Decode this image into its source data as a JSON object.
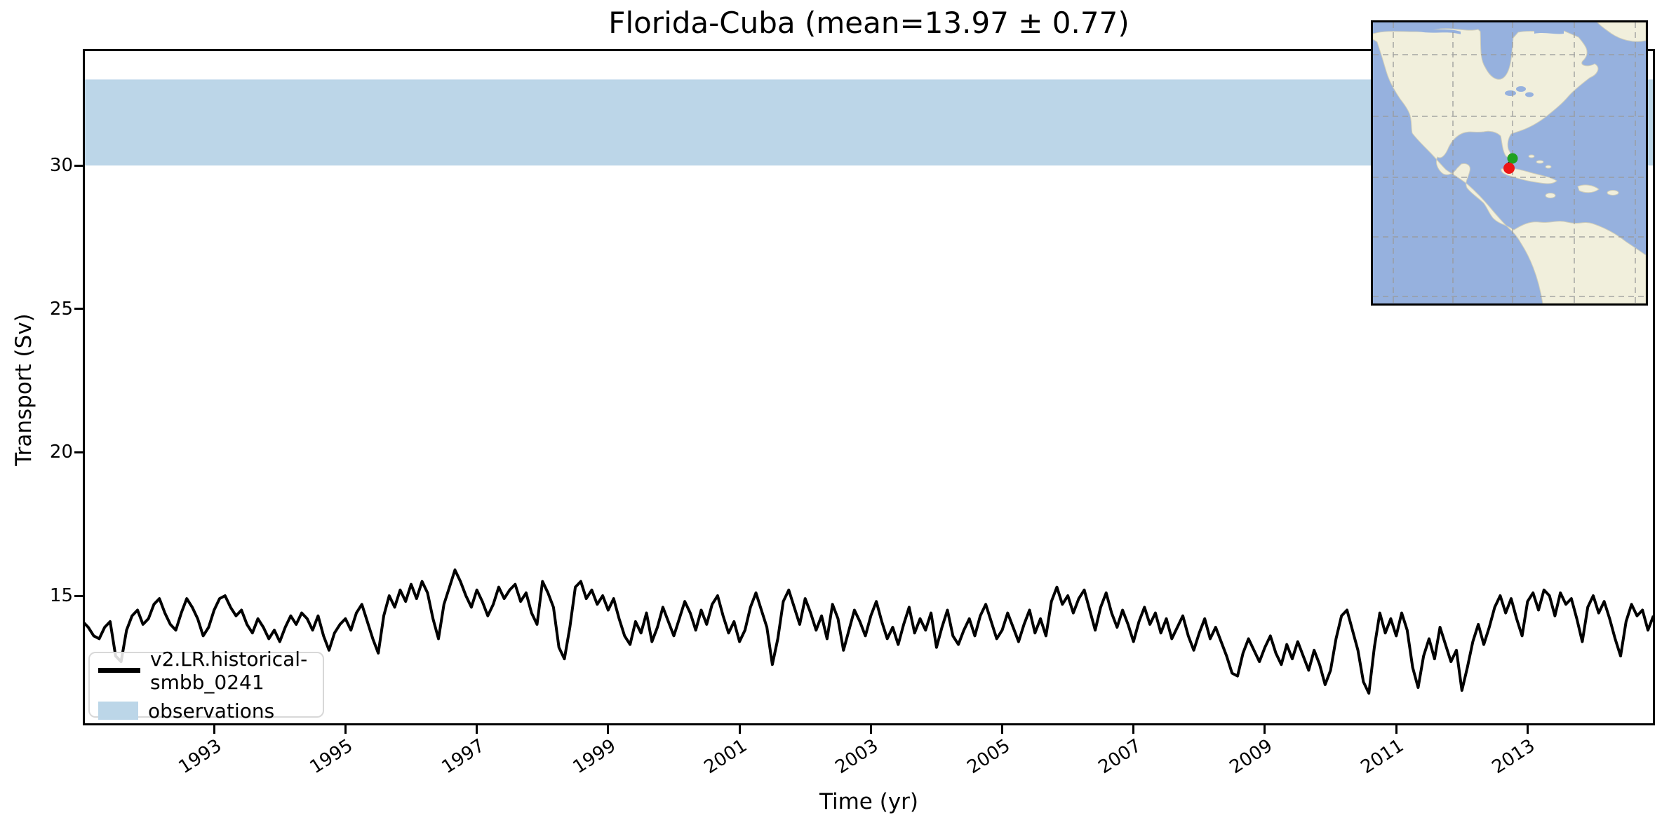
{
  "figure": {
    "title": "Florida-Cuba (mean=13.97 ± 0.77)"
  },
  "axes": {
    "xlabel": "Time (yr)",
    "ylabel": "Transport (Sv)"
  },
  "legend": {
    "items": [
      {
        "label": "v2.LR.historical-smbb_0241",
        "type": "line",
        "color": "#000000"
      },
      {
        "label": "observations",
        "type": "patch",
        "color": "#bcd6e8"
      }
    ]
  },
  "colors": {
    "model_line": "#000000",
    "obs_band": "#bcd6e8",
    "spine": "#000000",
    "map_ocean": "#96b1de",
    "map_land": "#f1efdc",
    "map_grid": "#9a9a9a",
    "marker_green": "#1fa11f",
    "marker_red": "#ed1515"
  },
  "inset_map": {
    "region": "North and Central America with Gulf of Mexico and Caribbean",
    "markers": [
      {
        "name": "florida-endpoint",
        "color": "#1fa11f"
      },
      {
        "name": "cuba-endpoint",
        "color": "#ed1515"
      }
    ]
  },
  "chart_data": {
    "type": "line",
    "title": "Florida-Cuba (mean=13.97 ± 0.77)",
    "xlabel": "Time (yr)",
    "ylabel": "Transport (Sv)",
    "xlim": [
      1991.0,
      2014.94
    ],
    "ylim": [
      10.48,
      34.06
    ],
    "x_ticks": [
      1993,
      1995,
      1997,
      1999,
      2001,
      2003,
      2005,
      2007,
      2009,
      2011,
      2013
    ],
    "y_ticks": [
      15,
      20,
      25,
      30
    ],
    "grid": false,
    "legend_position": "lower left",
    "stats": {
      "mean": 13.97,
      "std": 0.77
    },
    "obs_band": {
      "label": "observations",
      "range": [
        30,
        33
      ],
      "color": "#bcd6e8"
    },
    "x_start": 1991.0,
    "x_step": 0.08333333,
    "series": [
      {
        "name": "v2.LR.historical-smbb_0241",
        "color": "#000000",
        "values": [
          14.1,
          13.9,
          13.6,
          13.5,
          13.9,
          14.1,
          12.9,
          12.7,
          13.8,
          14.3,
          14.5,
          14.0,
          14.2,
          14.7,
          14.9,
          14.4,
          14.0,
          13.8,
          14.4,
          14.9,
          14.6,
          14.2,
          13.6,
          13.9,
          14.5,
          14.9,
          15.0,
          14.6,
          14.3,
          14.5,
          14.0,
          13.7,
          14.2,
          13.9,
          13.5,
          13.8,
          13.4,
          13.9,
          14.3,
          14.0,
          14.4,
          14.2,
          13.8,
          14.3,
          13.6,
          13.1,
          13.7,
          14.0,
          14.2,
          13.8,
          14.4,
          14.7,
          14.1,
          13.5,
          13.0,
          14.3,
          15.0,
          14.6,
          15.2,
          14.8,
          15.4,
          14.9,
          15.5,
          15.1,
          14.2,
          13.5,
          14.7,
          15.3,
          15.9,
          15.5,
          15.0,
          14.6,
          15.2,
          14.8,
          14.3,
          14.7,
          15.3,
          14.9,
          15.2,
          15.4,
          14.8,
          15.1,
          14.4,
          14.0,
          15.5,
          15.1,
          14.6,
          13.2,
          12.8,
          13.9,
          15.3,
          15.5,
          14.9,
          15.2,
          14.7,
          15.0,
          14.5,
          14.9,
          14.2,
          13.6,
          13.3,
          14.1,
          13.7,
          14.4,
          13.4,
          13.9,
          14.6,
          14.1,
          13.6,
          14.2,
          14.8,
          14.4,
          13.8,
          14.5,
          14.0,
          14.7,
          15.0,
          14.3,
          13.7,
          14.1,
          13.4,
          13.8,
          14.6,
          15.1,
          14.5,
          13.9,
          12.6,
          13.5,
          14.8,
          15.2,
          14.6,
          14.0,
          14.9,
          14.4,
          13.8,
          14.3,
          13.5,
          14.7,
          14.2,
          13.1,
          13.8,
          14.5,
          14.1,
          13.6,
          14.3,
          14.8,
          14.1,
          13.5,
          13.9,
          13.3,
          14.0,
          14.6,
          13.7,
          14.2,
          13.8,
          14.4,
          13.2,
          13.9,
          14.5,
          13.6,
          13.3,
          13.8,
          14.2,
          13.6,
          14.3,
          14.7,
          14.1,
          13.5,
          13.8,
          14.4,
          13.9,
          13.4,
          14.0,
          14.5,
          13.7,
          14.2,
          13.6,
          14.8,
          15.3,
          14.7,
          15.0,
          14.4,
          14.9,
          15.2,
          14.5,
          13.8,
          14.6,
          15.1,
          14.4,
          13.9,
          14.5,
          14.0,
          13.4,
          14.1,
          14.6,
          14.0,
          14.4,
          13.7,
          14.2,
          13.5,
          13.9,
          14.3,
          13.6,
          13.1,
          13.7,
          14.2,
          13.5,
          13.9,
          13.4,
          12.9,
          12.3,
          12.2,
          13.0,
          13.5,
          13.1,
          12.7,
          13.2,
          13.6,
          13.0,
          12.6,
          13.3,
          12.8,
          13.4,
          12.9,
          12.4,
          13.1,
          12.6,
          11.9,
          12.4,
          13.5,
          14.3,
          14.5,
          13.8,
          13.1,
          12.0,
          11.6,
          13.2,
          14.4,
          13.7,
          14.2,
          13.6,
          14.4,
          13.8,
          12.5,
          11.8,
          12.9,
          13.5,
          12.8,
          13.9,
          13.3,
          12.7,
          13.1,
          11.7,
          12.5,
          13.4,
          14.0,
          13.3,
          13.9,
          14.6,
          15.0,
          14.4,
          14.9,
          14.2,
          13.6,
          14.8,
          15.1,
          14.5,
          15.2,
          15.0,
          14.3,
          15.1,
          14.7,
          14.9,
          14.2,
          13.4,
          14.6,
          15.0,
          14.4,
          14.8,
          14.2,
          13.5,
          12.9,
          14.1,
          14.7,
          14.3,
          14.5,
          13.8,
          14.3
        ]
      }
    ]
  }
}
